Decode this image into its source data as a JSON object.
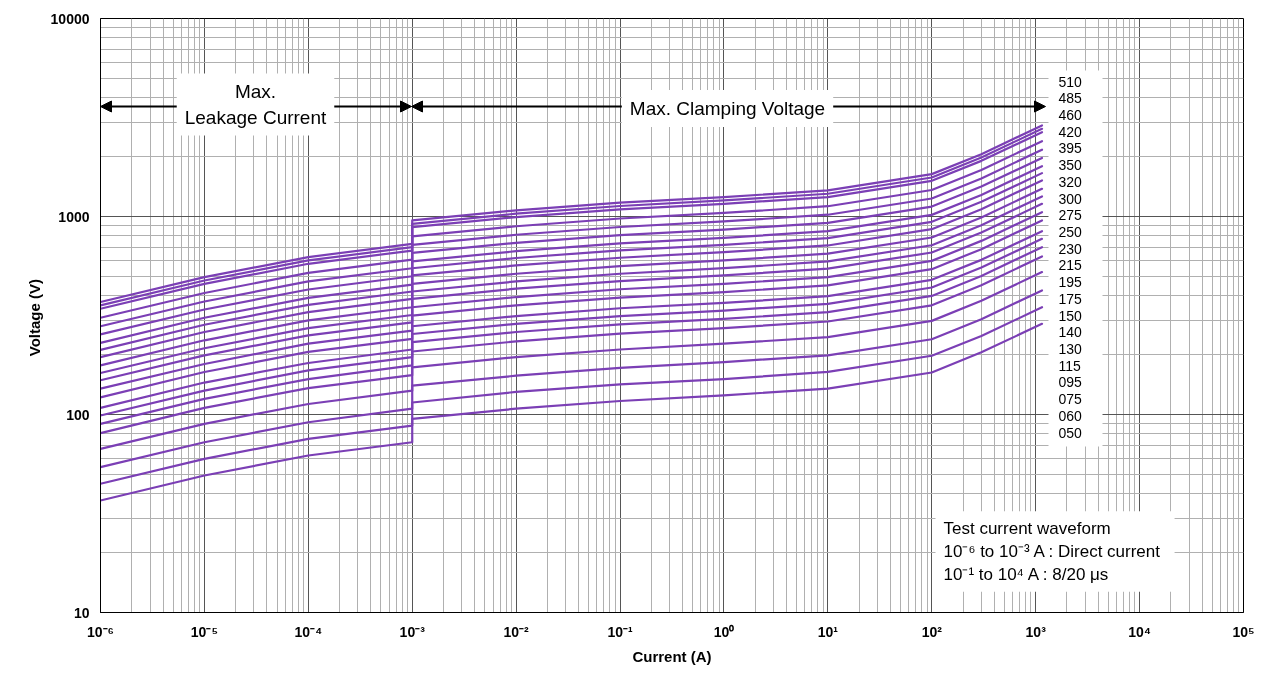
{
  "chart_data": {
    "type": "line",
    "xlabel": "Current (A)",
    "ylabel": "Voltage  (V)",
    "log": "xy",
    "grid": true,
    "legend": false,
    "xlim": [
      1e-06,
      100000.0
    ],
    "ylim": [
      10,
      10000
    ],
    "xticks": [
      {
        "value": 1e-06,
        "label": "10⁻⁶"
      },
      {
        "value": 1e-05,
        "label": "10⁻⁵"
      },
      {
        "value": 0.0001,
        "label": "10⁻⁴"
      },
      {
        "value": 0.001,
        "label": "10⁻³"
      },
      {
        "value": 0.01,
        "label": "10⁻²"
      },
      {
        "value": 0.1,
        "label": "10⁻¹"
      },
      {
        "value": 1,
        "label": "10⁰"
      },
      {
        "value": 10,
        "label": "10¹"
      },
      {
        "value": 100,
        "label": "10²"
      },
      {
        "value": 1000,
        "label": "10³"
      },
      {
        "value": 10000,
        "label": "10⁴"
      },
      {
        "value": 100000,
        "label": "10⁵"
      }
    ],
    "yticks": [
      10,
      100,
      1000,
      10000
    ],
    "x": [
      1e-06,
      1e-05,
      0.0001,
      0.001,
      0.001,
      0.01,
      0.1,
      1,
      10,
      100,
      300,
      1150
    ],
    "annotations": [
      "Max.\nLeakage Current",
      "Max. Clamping Voltage",
      "Test current waveform\n10⁻⁶  to 10⁻³ A : Direct current\n10⁻¹  to 10⁴ A : 8/20 μs"
    ],
    "series": [
      {
        "name": "510",
        "color": "#7b3fb5",
        "values": [
          370,
          494,
          624,
          728,
          955,
          1074,
          1175,
          1253,
          1355,
          1637,
          2065,
          2884
        ]
      },
      {
        "name": "485",
        "color": "#7b3fb5",
        "values": [
          356,
          475,
          600,
          700,
          918,
          1033,
          1130,
          1205,
          1303,
          1574,
          1986,
          2773
        ]
      },
      {
        "name": "460",
        "color": "#7b3fb5",
        "values": [
          342,
          457,
          577,
          673,
          883,
          993,
          1086,
          1159,
          1253,
          1514,
          1910,
          2667
        ]
      },
      {
        "name": "420",
        "color": "#7b3fb5",
        "values": [
          308,
          411,
          519,
          605,
          794,
          893,
          977,
          1042,
          1127,
          1361,
          1718,
          2399
        ]
      },
      {
        "name": "395",
        "color": "#7b3fb5",
        "values": [
          279,
          372,
          470,
          548,
          719,
          809,
          885,
          944,
          1021,
          1233,
          1556,
          2173
        ]
      },
      {
        "name": "350",
        "color": "#7b3fb5",
        "values": [
          254,
          339,
          428,
          499,
          655,
          736,
          805,
          859,
          929,
          1122,
          1416,
          1977
        ]
      },
      {
        "name": "320",
        "color": "#7b3fb5",
        "values": [
          230,
          308,
          388,
          453,
          594,
          668,
          731,
          780,
          843,
          1019,
          1285,
          1795
        ]
      },
      {
        "name": "300",
        "color": "#7b3fb5",
        "values": [
          212,
          284,
          358,
          418,
          548,
          617,
          675,
          719,
          778,
          940,
          1186,
          1656
        ]
      },
      {
        "name": "275",
        "color": "#7b3fb5",
        "values": [
          195,
          261,
          329,
          384,
          504,
          566,
          619,
          661,
          714,
          863,
          1089,
          1521
        ]
      },
      {
        "name": "250",
        "color": "#7b3fb5",
        "values": [
          177,
          237,
          299,
          348,
          457,
          514,
          562,
          600,
          649,
          783,
          989,
          1380
        ]
      },
      {
        "name": "230",
        "color": "#7b3fb5",
        "values": [
          162,
          216,
          273,
          318,
          418,
          470,
          514,
          548,
          593,
          716,
          904,
          1262
        ]
      },
      {
        "name": "215",
        "color": "#7b3fb5",
        "values": [
          149,
          199,
          251,
          292,
          384,
          432,
          472,
          504,
          545,
          658,
          830,
          1159
        ]
      },
      {
        "name": "195",
        "color": "#7b3fb5",
        "values": [
          135,
          180,
          228,
          265,
          348,
          392,
          429,
          457,
          494,
          597,
          753,
          1052
        ]
      },
      {
        "name": "175",
        "color": "#7b3fb5",
        "values": [
          122,
          164,
          207,
          241,
          316,
          356,
          389,
          415,
          449,
          542,
          684,
          955
        ]
      },
      {
        "name": "150",
        "color": "#7b3fb5",
        "values": [
          108,
          145,
          182,
          213,
          279,
          314,
          344,
          366,
          396,
          479,
          604,
          843
        ]
      },
      {
        "name": "140",
        "color": "#7b3fb5",
        "values": [
          98.9,
          132,
          167,
          195,
          255,
          287,
          314,
          335,
          362,
          438,
          552,
          771
        ]
      },
      {
        "name": "130",
        "color": "#7b3fb5",
        "values": [
          89.7,
          120,
          151,
          177,
          232,
          261,
          285,
          304,
          329,
          397,
          501,
          700
        ]
      },
      {
        "name": "115",
        "color": "#7b3fb5",
        "values": [
          80.5,
          108,
          136,
          158,
          208,
          234,
          256,
          273,
          295,
          356,
          450,
          628
        ]
      },
      {
        "name": "095",
        "color": "#7b3fb5",
        "values": [
          67.1,
          89.7,
          113,
          132,
          173,
          195,
          213,
          228,
          246,
          297,
          375,
          524
        ]
      },
      {
        "name": "075",
        "color": "#7b3fb5",
        "values": [
          54.2,
          72.4,
          91.4,
          107,
          140,
          157,
          172,
          184,
          199,
          240,
          303,
          423
        ]
      },
      {
        "name": "060",
        "color": "#7b3fb5",
        "values": [
          44.7,
          59.7,
          75.3,
          87.9,
          115,
          130,
          142,
          151,
          164,
          198,
          249,
          348
        ]
      },
      {
        "name": "050",
        "color": "#7b3fb5",
        "values": [
          36.8,
          49.2,
          62.1,
          72.4,
          95.1,
          107,
          117,
          125,
          135,
          163,
          206,
          287
        ]
      }
    ]
  }
}
